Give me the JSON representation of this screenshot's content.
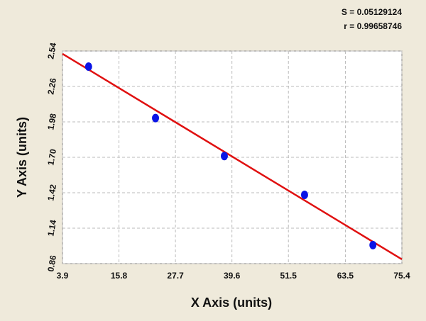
{
  "chart_data": {
    "type": "scatter",
    "annotations": [
      "S = 0.05129124",
      "r = 0.99658746"
    ],
    "x_label": "X Axis (units)",
    "y_label": "Y Axis (units)",
    "xlim": [
      3.9,
      75.4
    ],
    "xticks": [
      3.9,
      15.8,
      27.7,
      39.6,
      51.5,
      63.5,
      75.4
    ],
    "ylim": [
      0.86,
      2.54
    ],
    "yticks": [
      0.86,
      1.14,
      1.42,
      {
        "value": 1.7,
        "label": "1.70"
      },
      1.98,
      2.26,
      2.54
    ],
    "grid": true,
    "series": [
      {
        "style": "markers",
        "color": "#0a14e6",
        "x": [
          9.4,
          23.5,
          38.0,
          54.9,
          69.3
        ],
        "values": [
          2.417,
          2.01,
          1.71,
          1.403,
          1.006
        ]
      },
      {
        "style": "line",
        "color": "#e01010",
        "x": [
          3.9,
          75.4
        ],
        "values": [
          2.518,
          0.894
        ]
      }
    ]
  }
}
